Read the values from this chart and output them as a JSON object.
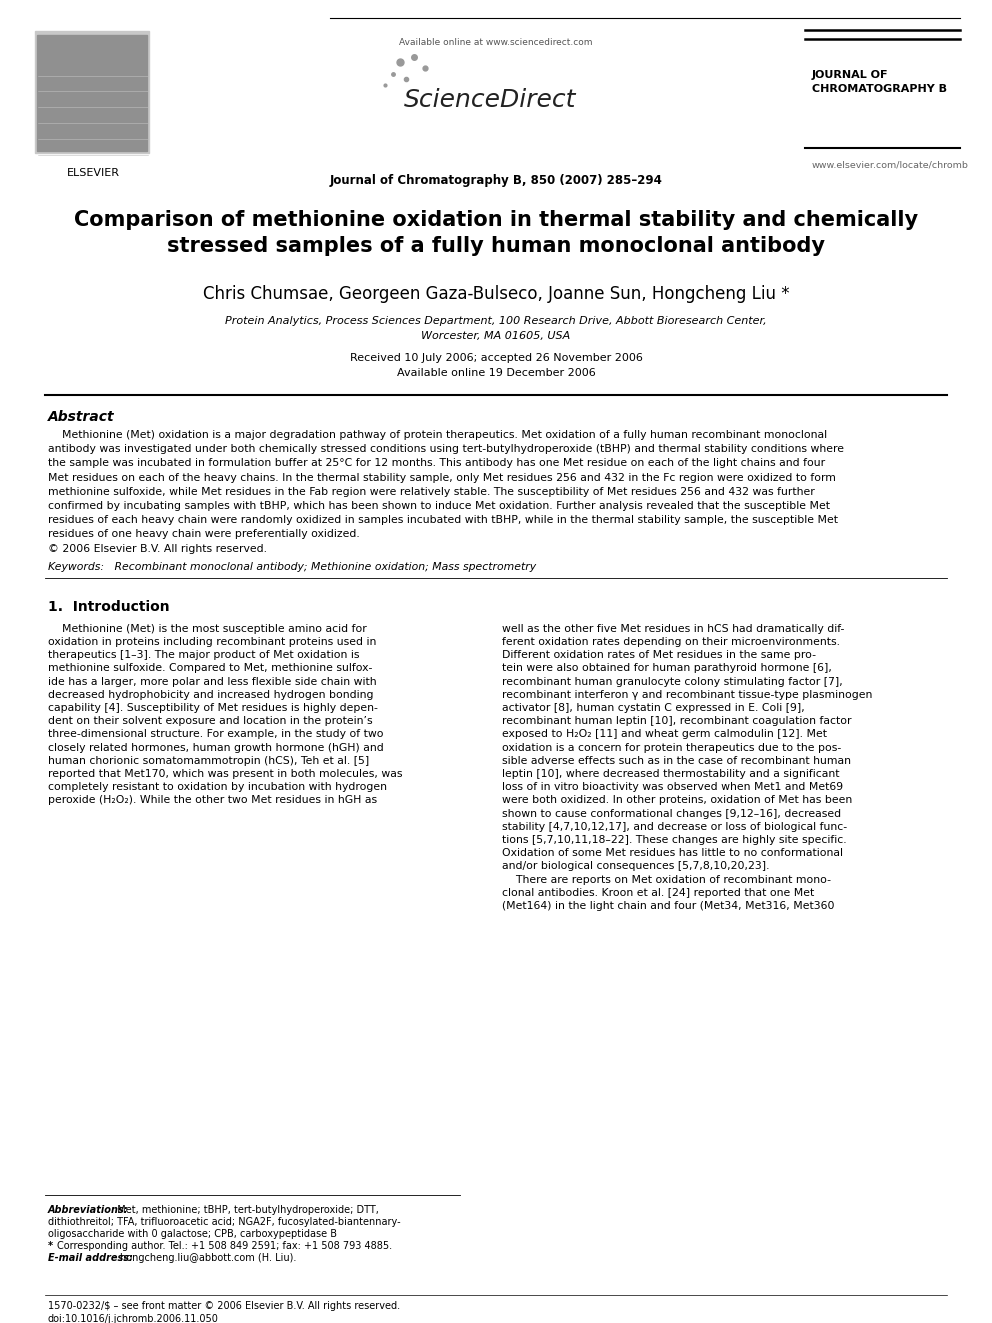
{
  "bg_color": "#ffffff",
  "header_available_online": "Available online at www.sciencedirect.com",
  "header_journal_name": "ScienceDirect",
  "header_journal_right_top": "JOURNAL OF\nCHROMATOGRAPHY B",
  "header_journal_citation": "Journal of Chromatography B, 850 (2007) 285–294",
  "header_url": "www.elsevier.com/locate/chromb",
  "elsevier_text": "ELSEVIER",
  "title": "Comparison of methionine oxidation in thermal stability and chemically\nstressed samples of a fully human monoclonal antibody",
  "authors": "Chris Chumsae, Georgeen Gaza-Bulseco, Joanne Sun, Hongcheng Liu *",
  "affiliation1": "Protein Analytics, Process Sciences Department, 100 Research Drive, Abbott Bioresearch Center,",
  "affiliation2": "Worcester, MA 01605, USA",
  "received": "Received 10 July 2006; accepted 26 November 2006",
  "available": "Available online 19 December 2006",
  "abstract_title": "Abstract",
  "keywords": "Keywords:   Recombinant monoclonal antibody; Methionine oxidation; Mass spectrometry",
  "section1_title": "1.  Introduction",
  "footer1": "1570-0232/$ – see front matter © 2006 Elsevier B.V. All rights reserved.",
  "footer2": "doi:10.1016/j.jchromb.2006.11.050",
  "abstract_lines": [
    "    Methionine (Met) oxidation is a major degradation pathway of protein therapeutics. Met oxidation of a fully human recombinant monoclonal",
    "antibody was investigated under both chemically stressed conditions using tert-butylhydroperoxide (tBHP) and thermal stability conditions where",
    "the sample was incubated in formulation buffer at 25°C for 12 months. This antibody has one Met residue on each of the light chains and four",
    "Met residues on each of the heavy chains. In the thermal stability sample, only Met residues 256 and 432 in the Fc region were oxidized to form",
    "methionine sulfoxide, while Met residues in the Fab region were relatively stable. The susceptibility of Met residues 256 and 432 was further",
    "confirmed by incubating samples with tBHP, which has been shown to induce Met oxidation. Further analysis revealed that the susceptible Met",
    "residues of each heavy chain were randomly oxidized in samples incubated with tBHP, while in the thermal stability sample, the susceptible Met",
    "residues of one heavy chain were preferentially oxidized.",
    "© 2006 Elsevier B.V. All rights reserved."
  ],
  "col1_lines": [
    "    Methionine (Met) is the most susceptible amino acid for",
    "oxidation in proteins including recombinant proteins used in",
    "therapeutics [1–3]. The major product of Met oxidation is",
    "methionine sulfoxide. Compared to Met, methionine sulfox-",
    "ide has a larger, more polar and less flexible side chain with",
    "decreased hydrophobicity and increased hydrogen bonding",
    "capability [4]. Susceptibility of Met residues is highly depen-",
    "dent on their solvent exposure and location in the protein’s",
    "three-dimensional structure. For example, in the study of two",
    "closely related hormones, human growth hormone (hGH) and",
    "human chorionic somatomammotropin (hCS), Teh et al. [5]",
    "reported that Met170, which was present in both molecules, was",
    "completely resistant to oxidation by incubation with hydrogen",
    "peroxide (H₂O₂). While the other two Met residues in hGH as"
  ],
  "col2_lines": [
    "well as the other five Met residues in hCS had dramatically dif-",
    "ferent oxidation rates depending on their microenvironments.",
    "Different oxidation rates of Met residues in the same pro-",
    "tein were also obtained for human parathyroid hormone [6],",
    "recombinant human granulocyte colony stimulating factor [7],",
    "recombinant interferon γ and recombinant tissue-type plasminogen",
    "activator [8], human cystatin C expressed in E. Coli [9],",
    "recombinant human leptin [10], recombinant coagulation factor",
    "exposed to H₂O₂ [11] and wheat germ calmodulin [12]. Met",
    "oxidation is a concern for protein therapeutics due to the pos-",
    "sible adverse effects such as in the case of recombinant human",
    "leptin [10], where decreased thermostability and a significant",
    "loss of in vitro bioactivity was observed when Met1 and Met69",
    "were both oxidized. In other proteins, oxidation of Met has been",
    "shown to cause conformational changes [9,12–16], decreased",
    "stability [4,7,10,12,17], and decrease or loss of biological func-",
    "tions [5,7,10,11,18–22]. These changes are highly site specific.",
    "Oxidation of some Met residues has little to no conformational",
    "and/or biological consequences [5,7,8,10,20,23].",
    "    There are reports on Met oxidation of recombinant mono-",
    "clonal antibodies. Kroon et al. [24] reported that one Met",
    "(Met164) in the light chain and four (Met34, Met316, Met360"
  ],
  "fn_lines": [
    [
      "Abbreviations:",
      "  Met, methionine; tBHP, tert-butylhydroperoxide; DTT,"
    ],
    [
      "",
      "dithiothreitol; TFA, trifluoroacetic acid; NGA2F, fucosylated-biantennary-"
    ],
    [
      "",
      "oligosaccharide with 0 galactose; CPB, carboxypeptidase B"
    ],
    [
      "* ",
      "Corresponding author. Tel.: +1 508 849 2591; fax: +1 508 793 4885."
    ],
    [
      "E-mail address: ",
      "hongcheng.liu@abbott.com (H. Liu)."
    ]
  ]
}
